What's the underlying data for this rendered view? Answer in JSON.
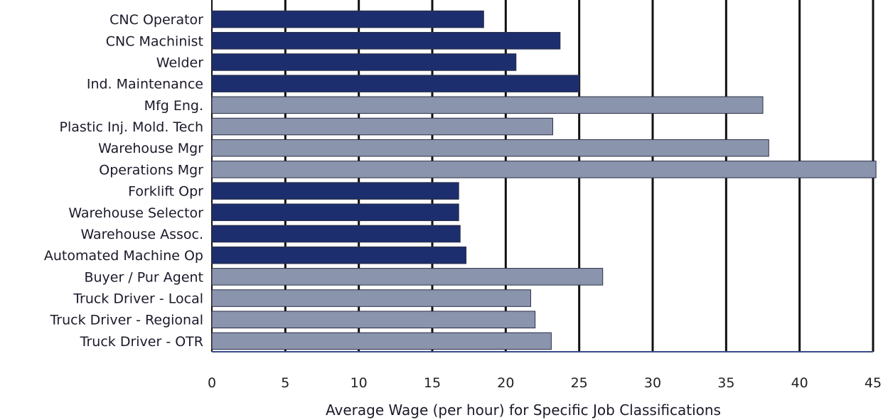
{
  "chart_data": {
    "type": "bar",
    "orientation": "horizontal",
    "categories": [
      "CNC Operator",
      "CNC Machinist",
      "Welder",
      "Ind. Maintenance",
      "Mfg Eng.",
      "Plastic Inj. Mold. Tech",
      "Warehouse Mgr",
      "Operations Mgr",
      "Forklift Opr",
      "Warehouse Selector",
      "Warehouse Assoc.",
      "Automated Machine Op",
      "Buyer / Pur Agent",
      "Truck Driver - Local",
      "Truck Driver - Regional",
      "Truck Driver - OTR"
    ],
    "values": [
      18.5,
      23.7,
      20.7,
      25.0,
      37.5,
      23.2,
      37.9,
      45.2,
      16.8,
      16.8,
      16.9,
      17.3,
      26.6,
      21.7,
      22.0,
      23.1
    ],
    "bar_colors": [
      "#1c2e6e",
      "#1c2e6e",
      "#1c2e6e",
      "#1c2e6e",
      "#8a94ad",
      "#8a94ad",
      "#8a94ad",
      "#8a94ad",
      "#1c2e6e",
      "#1c2e6e",
      "#1c2e6e",
      "#1c2e6e",
      "#8a94ad",
      "#8a94ad",
      "#8a94ad",
      "#8a94ad"
    ],
    "xlabel": "Average Wage (per hour) for Specific Job Classifications",
    "xlim": [
      0,
      45
    ],
    "xticks": [
      "0",
      "5",
      "10",
      "15",
      "20",
      "25",
      "30",
      "35",
      "40",
      "45"
    ],
    "grid": "vertical",
    "colors": {
      "dark": "#1c2e6e",
      "light": "#8a94ad",
      "grid": "#111111",
      "baseline": "#3a4a8a"
    }
  }
}
